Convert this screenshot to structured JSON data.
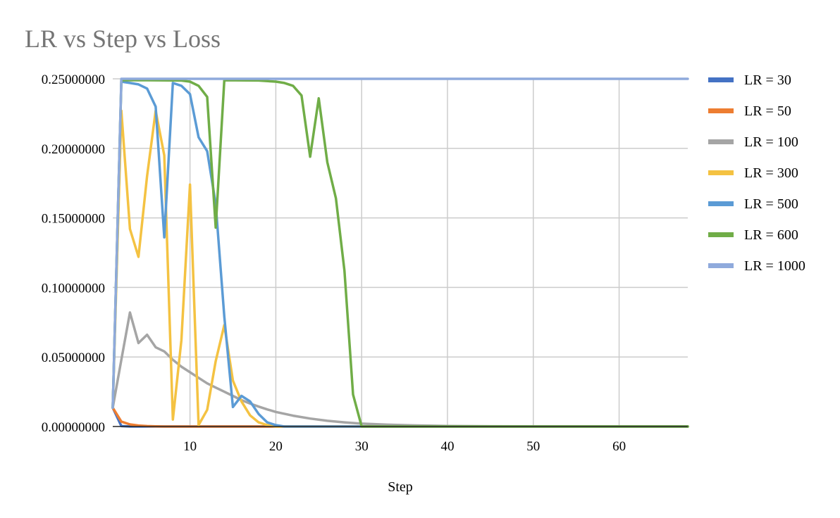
{
  "chart_data": {
    "type": "line",
    "title": "LR vs Step vs Loss",
    "xlabel": "Step",
    "ylabel": "",
    "xlim": [
      1,
      68
    ],
    "ylim": [
      0,
      0.25
    ],
    "x_ticks": [
      10,
      20,
      30,
      40,
      50,
      60
    ],
    "y_ticks": [
      "0.00000000",
      "0.05000000",
      "0.10000000",
      "0.15000000",
      "0.20000000",
      "0.25000000"
    ],
    "y_tick_values": [
      0,
      0.05,
      0.1,
      0.15,
      0.2,
      0.25
    ],
    "grid": true,
    "legend_position": "right",
    "series": [
      {
        "name": "LR = 30",
        "color": "#4472c4",
        "points": [
          [
            1,
            0.0135
          ],
          [
            2,
            0.0003
          ],
          [
            3,
            0.0
          ],
          [
            68,
            0.0
          ]
        ]
      },
      {
        "name": "LR = 50",
        "color": "#ed7d31",
        "points": [
          [
            1,
            0.0135
          ],
          [
            2,
            0.0035
          ],
          [
            3,
            0.0015
          ],
          [
            4,
            0.0007
          ],
          [
            5,
            0.0003
          ],
          [
            6,
            0.0001
          ],
          [
            7,
            0.0
          ],
          [
            68,
            0.0
          ]
        ]
      },
      {
        "name": "LR = 100",
        "color": "#a5a5a5",
        "points": [
          [
            1,
            0.0135
          ],
          [
            2,
            0.048
          ],
          [
            3,
            0.082
          ],
          [
            4,
            0.06
          ],
          [
            5,
            0.066
          ],
          [
            6,
            0.057
          ],
          [
            7,
            0.054
          ],
          [
            8,
            0.048
          ],
          [
            9,
            0.043
          ],
          [
            10,
            0.039
          ],
          [
            11,
            0.035
          ],
          [
            12,
            0.031
          ],
          [
            13,
            0.028
          ],
          [
            14,
            0.025
          ],
          [
            15,
            0.022
          ],
          [
            16,
            0.019
          ],
          [
            17,
            0.0165
          ],
          [
            18,
            0.0143
          ],
          [
            19,
            0.0123
          ],
          [
            20,
            0.0105
          ],
          [
            22,
            0.0078
          ],
          [
            24,
            0.0057
          ],
          [
            26,
            0.0041
          ],
          [
            28,
            0.003
          ],
          [
            30,
            0.0021
          ],
          [
            33,
            0.0013
          ],
          [
            36,
            0.0008
          ],
          [
            40,
            0.0004
          ],
          [
            45,
            0.0002
          ],
          [
            50,
            0.0001
          ],
          [
            55,
            0.0
          ],
          [
            68,
            0.0
          ]
        ]
      },
      {
        "name": "LR = 300",
        "color": "#f4c242",
        "points": [
          [
            1,
            0.0135
          ],
          [
            2,
            0.227
          ],
          [
            3,
            0.142
          ],
          [
            4,
            0.122
          ],
          [
            5,
            0.18
          ],
          [
            6,
            0.227
          ],
          [
            7,
            0.195
          ],
          [
            8,
            0.005
          ],
          [
            9,
            0.062
          ],
          [
            10,
            0.174
          ],
          [
            11,
            0.001
          ],
          [
            12,
            0.012
          ],
          [
            13,
            0.047
          ],
          [
            14,
            0.073
          ],
          [
            15,
            0.033
          ],
          [
            16,
            0.018
          ],
          [
            17,
            0.008
          ],
          [
            18,
            0.003
          ],
          [
            19,
            0.001
          ],
          [
            20,
            0.0
          ],
          [
            68,
            0.0
          ]
        ]
      },
      {
        "name": "LR = 500",
        "color": "#5b9bd5",
        "points": [
          [
            1,
            0.0135
          ],
          [
            2,
            0.248
          ],
          [
            3,
            0.247
          ],
          [
            4,
            0.246
          ],
          [
            5,
            0.243
          ],
          [
            6,
            0.23
          ],
          [
            7,
            0.136
          ],
          [
            8,
            0.247
          ],
          [
            9,
            0.245
          ],
          [
            10,
            0.239
          ],
          [
            11,
            0.208
          ],
          [
            12,
            0.198
          ],
          [
            13,
            0.16
          ],
          [
            14,
            0.079
          ],
          [
            15,
            0.014
          ],
          [
            16,
            0.022
          ],
          [
            17,
            0.018
          ],
          [
            18,
            0.009
          ],
          [
            19,
            0.003
          ],
          [
            20,
            0.001
          ],
          [
            21,
            0.0
          ],
          [
            68,
            0.0
          ]
        ]
      },
      {
        "name": "LR = 600",
        "color": "#70ad47",
        "points": [
          [
            1,
            0.0135
          ],
          [
            2,
            0.249
          ],
          [
            5,
            0.249
          ],
          [
            9,
            0.2488
          ],
          [
            10,
            0.248
          ],
          [
            11,
            0.245
          ],
          [
            12,
            0.237
          ],
          [
            13,
            0.143
          ],
          [
            14,
            0.249
          ],
          [
            18,
            0.2488
          ],
          [
            20,
            0.248
          ],
          [
            21,
            0.247
          ],
          [
            22,
            0.245
          ],
          [
            23,
            0.238
          ],
          [
            24,
            0.194
          ],
          [
            25,
            0.236
          ],
          [
            26,
            0.19
          ],
          [
            27,
            0.164
          ],
          [
            28,
            0.112
          ],
          [
            29,
            0.023
          ],
          [
            30,
            0.0
          ],
          [
            68,
            0.0
          ]
        ]
      },
      {
        "name": "LR = 1000",
        "color": "#8faadc",
        "points": [
          [
            1,
            0.0135
          ],
          [
            2,
            0.25
          ],
          [
            68,
            0.25
          ]
        ]
      }
    ]
  }
}
